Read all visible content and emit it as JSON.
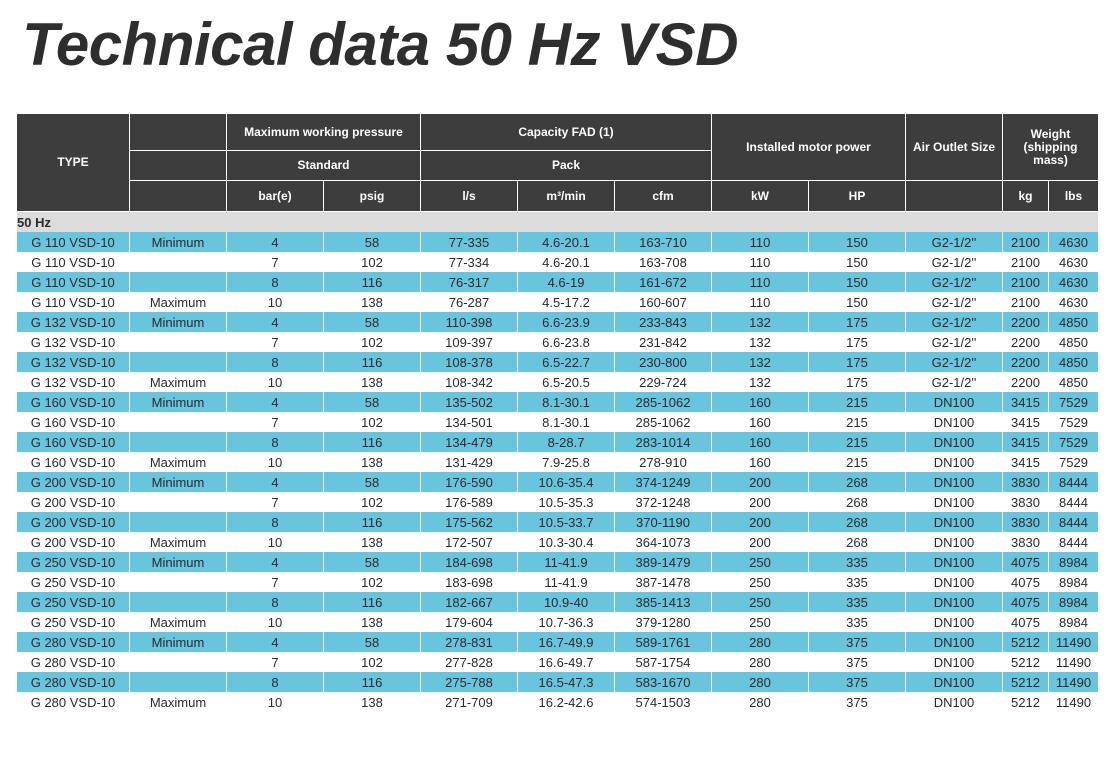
{
  "page": {
    "title": "Technical data 50 Hz VSD"
  },
  "table": {
    "headers": {
      "type": "TYPE",
      "max_pressure": "Maximum working pressure",
      "standard": "Standard",
      "capacity": "Capacity FAD (1)",
      "pack": "Pack",
      "motor": "Installed motor power",
      "outlet": "Air Outlet Size",
      "weight": "Weight (shipping mass)",
      "units": [
        "bar(e)",
        "psig",
        "l/s",
        "m³/min",
        "cfm",
        "kW",
        "HP",
        "kg",
        "lbs"
      ]
    },
    "section_label": "50 Hz",
    "rows": [
      [
        "G 110 VSD-10",
        "Minimum",
        "4",
        "58",
        "77-335",
        "4.6-20.1",
        "163-710",
        "110",
        "150",
        "G2-1/2''",
        "2100",
        "4630"
      ],
      [
        "G 110 VSD-10",
        "",
        "7",
        "102",
        "77-334",
        "4.6-20.1",
        "163-708",
        "110",
        "150",
        "G2-1/2''",
        "2100",
        "4630"
      ],
      [
        "G 110 VSD-10",
        "",
        "8",
        "116",
        "76-317",
        "4.6-19",
        "161-672",
        "110",
        "150",
        "G2-1/2''",
        "2100",
        "4630"
      ],
      [
        "G 110 VSD-10",
        "Maximum",
        "10",
        "138",
        "76-287",
        "4.5-17.2",
        "160-607",
        "110",
        "150",
        "G2-1/2''",
        "2100",
        "4630"
      ],
      [
        "G 132 VSD-10",
        "Minimum",
        "4",
        "58",
        "110-398",
        "6.6-23.9",
        "233-843",
        "132",
        "175",
        "G2-1/2''",
        "2200",
        "4850"
      ],
      [
        "G 132 VSD-10",
        "",
        "7",
        "102",
        "109-397",
        "6.6-23.8",
        "231-842",
        "132",
        "175",
        "G2-1/2''",
        "2200",
        "4850"
      ],
      [
        "G 132 VSD-10",
        "",
        "8",
        "116",
        "108-378",
        "6.5-22.7",
        "230-800",
        "132",
        "175",
        "G2-1/2''",
        "2200",
        "4850"
      ],
      [
        "G 132 VSD-10",
        "Maximum",
        "10",
        "138",
        "108-342",
        "6.5-20.5",
        "229-724",
        "132",
        "175",
        "G2-1/2''",
        "2200",
        "4850"
      ],
      [
        "G 160 VSD-10",
        "Minimum",
        "4",
        "58",
        "135-502",
        "8.1-30.1",
        "285-1062",
        "160",
        "215",
        "DN100",
        "3415",
        "7529"
      ],
      [
        "G 160 VSD-10",
        "",
        "7",
        "102",
        "134-501",
        "8.1-30.1",
        "285-1062",
        "160",
        "215",
        "DN100",
        "3415",
        "7529"
      ],
      [
        "G 160 VSD-10",
        "",
        "8",
        "116",
        "134-479",
        "8-28.7",
        "283-1014",
        "160",
        "215",
        "DN100",
        "3415",
        "7529"
      ],
      [
        "G 160 VSD-10",
        "Maximum",
        "10",
        "138",
        "131-429",
        "7.9-25.8",
        "278-910",
        "160",
        "215",
        "DN100",
        "3415",
        "7529"
      ],
      [
        "G 200 VSD-10",
        "Minimum",
        "4",
        "58",
        "176-590",
        "10.6-35.4",
        "374-1249",
        "200",
        "268",
        "DN100",
        "3830",
        "8444"
      ],
      [
        "G 200 VSD-10",
        "",
        "7",
        "102",
        "176-589",
        "10.5-35.3",
        "372-1248",
        "200",
        "268",
        "DN100",
        "3830",
        "8444"
      ],
      [
        "G 200 VSD-10",
        "",
        "8",
        "116",
        "175-562",
        "10.5-33.7",
        "370-1190",
        "200",
        "268",
        "DN100",
        "3830",
        "8444"
      ],
      [
        "G 200 VSD-10",
        "Maximum",
        "10",
        "138",
        "172-507",
        "10.3-30.4",
        "364-1073",
        "200",
        "268",
        "DN100",
        "3830",
        "8444"
      ],
      [
        "G 250 VSD-10",
        "Minimum",
        "4",
        "58",
        "184-698",
        "11-41.9",
        "389-1479",
        "250",
        "335",
        "DN100",
        "4075",
        "8984"
      ],
      [
        "G 250 VSD-10",
        "",
        "7",
        "102",
        "183-698",
        "11-41.9",
        "387-1478",
        "250",
        "335",
        "DN100",
        "4075",
        "8984"
      ],
      [
        "G 250 VSD-10",
        "",
        "8",
        "116",
        "182-667",
        "10.9-40",
        "385-1413",
        "250",
        "335",
        "DN100",
        "4075",
        "8984"
      ],
      [
        "G 250 VSD-10",
        "Maximum",
        "10",
        "138",
        "179-604",
        "10.7-36.3",
        "379-1280",
        "250",
        "335",
        "DN100",
        "4075",
        "8984"
      ],
      [
        "G 280 VSD-10",
        "Minimum",
        "4",
        "58",
        "278-831",
        "16.7-49.9",
        "589-1761",
        "280",
        "375",
        "DN100",
        "5212",
        "11490"
      ],
      [
        "G 280 VSD-10",
        "",
        "7",
        "102",
        "277-828",
        "16.6-49.7",
        "587-1754",
        "280",
        "375",
        "DN100",
        "5212",
        "11490"
      ],
      [
        "G 280 VSD-10",
        "",
        "8",
        "116",
        "275-788",
        "16.5-47.3",
        "583-1670",
        "280",
        "375",
        "DN100",
        "5212",
        "11490"
      ],
      [
        "G 280 VSD-10",
        "Maximum",
        "10",
        "138",
        "271-709",
        "16.2-42.6",
        "574-1503",
        "280",
        "375",
        "DN100",
        "5212",
        "11490"
      ]
    ]
  },
  "colors": {
    "header_bg": "#3d3d3d",
    "stripe": "#69c4de",
    "section_bg": "#dcdcdc",
    "title": "#2e2e2e"
  }
}
